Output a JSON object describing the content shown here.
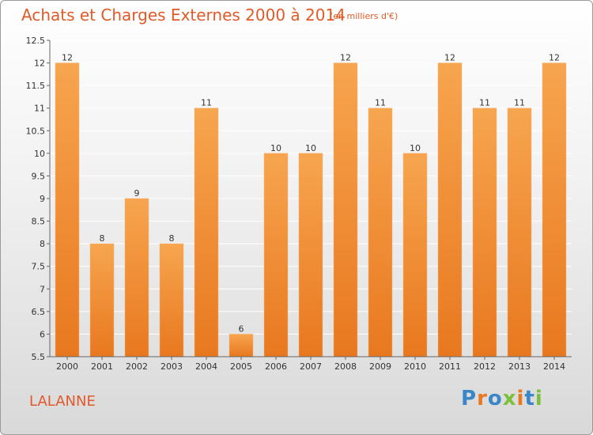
{
  "header": {
    "title": "Achats et Charges Externes 2000 à 2014",
    "subtitle": "(en milliers d'€)"
  },
  "footer": {
    "place": "LALANNE",
    "logo": "Proxiti"
  },
  "colors": {
    "accent": "#e25a28",
    "bar_top": "#f7a54f",
    "bar_bottom": "#e8781f",
    "grid": "#ffffff"
  },
  "chart_data": {
    "type": "bar",
    "categories": [
      "2000",
      "2001",
      "2002",
      "2003",
      "2004",
      "2005",
      "2006",
      "2007",
      "2008",
      "2009",
      "2010",
      "2011",
      "2012",
      "2013",
      "2014"
    ],
    "values": [
      12,
      8,
      9,
      8,
      11,
      6,
      10,
      10,
      12,
      11,
      10,
      12,
      11,
      11,
      12
    ],
    "data_labels": [
      "12",
      "8",
      "9",
      "8",
      "11",
      "6",
      "10",
      "10",
      "12",
      "11",
      "10",
      "12",
      "11",
      "11",
      "12"
    ],
    "title": "Achats et Charges Externes 2000 à 2014",
    "xlabel": "",
    "ylabel": "",
    "ylim": [
      5.5,
      12.5
    ],
    "yticks": [
      5.5,
      6,
      6.5,
      7,
      7.5,
      8,
      8.5,
      9,
      9.5,
      10,
      10.5,
      11,
      11.5,
      12,
      12.5
    ],
    "ytick_labels": [
      "5.5",
      "6",
      "6.5",
      "7",
      "7.5",
      "8",
      "8.5",
      "9",
      "9.5",
      "10",
      "10.5",
      "11",
      "11.5",
      "12",
      "12.5"
    ],
    "grid": true
  }
}
